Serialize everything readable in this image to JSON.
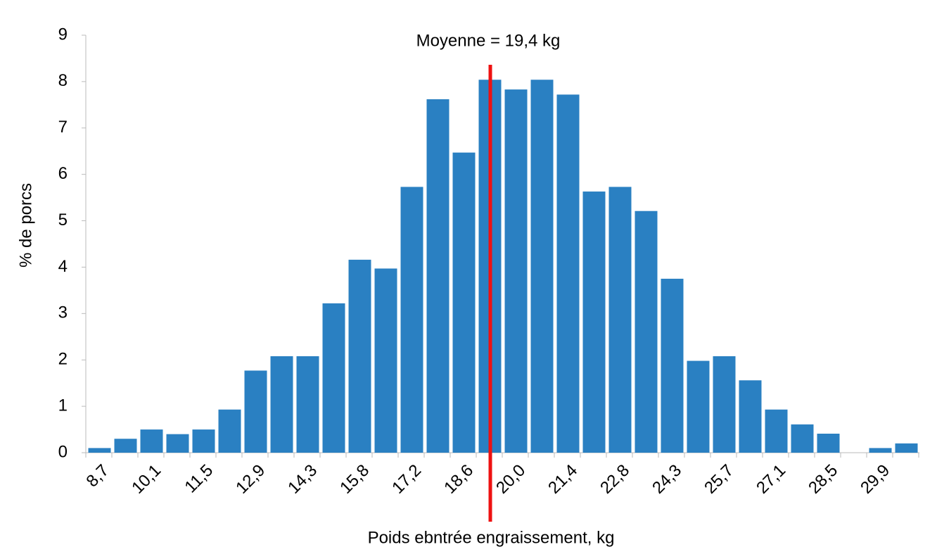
{
  "chart_data": {
    "type": "bar",
    "categories": [
      "8,7",
      null,
      "10,1",
      null,
      "11,5",
      null,
      "12,9",
      null,
      "14,3",
      null,
      "15,8",
      null,
      "17,2",
      null,
      "18,6",
      null,
      "20,0",
      null,
      "21,4",
      null,
      "22,8",
      null,
      "24,3",
      null,
      "25,7",
      null,
      "27,1",
      null,
      "28,5",
      null,
      "29,9",
      null
    ],
    "values": [
      0.1,
      0.3,
      0.5,
      0.4,
      0.5,
      0.93,
      1.77,
      2.08,
      2.08,
      3.22,
      4.16,
      3.97,
      5.73,
      7.62,
      6.47,
      8.04,
      7.83,
      8.04,
      7.72,
      5.63,
      5.73,
      5.21,
      3.75,
      1.98,
      2.08,
      1.56,
      0.93,
      0.61,
      0.41,
      0,
      0.1,
      0.2
    ],
    "color": "#2a80c2",
    "ylim": [
      0,
      9
    ],
    "yticks": [
      0,
      1,
      2,
      3,
      4,
      5,
      6,
      7,
      8,
      9
    ],
    "x_label": "Poids ebntrée engraissement, kg",
    "y_label": "% de porcs",
    "annotation": "Moyenne = 19,4 kg",
    "annotation_color": "#ee1111",
    "grid": false
  }
}
